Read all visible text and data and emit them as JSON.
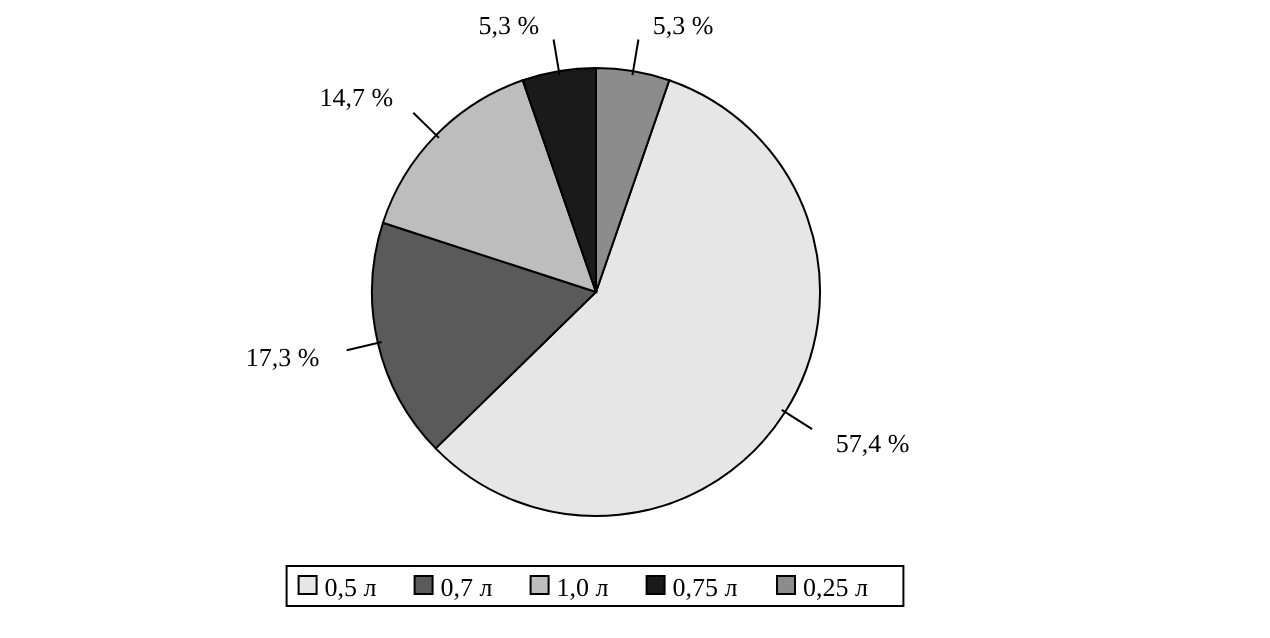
{
  "chart_data": {
    "type": "pie",
    "categories": [
      "0,5 л",
      "0,7 л",
      "1,0 л",
      "0,75 л",
      "0,25 л"
    ],
    "values": [
      57.4,
      17.3,
      14.7,
      5.3,
      5.3
    ],
    "value_labels": [
      "57,4 %",
      "17,3 %",
      "14,7 %",
      "5,3 %",
      "5,3 %"
    ],
    "colors": [
      "#e6e6e6",
      "#5a5a5a",
      "#bdbdbd",
      "#1a1a1a",
      "#8c8c8c"
    ],
    "legend": "bottom"
  }
}
